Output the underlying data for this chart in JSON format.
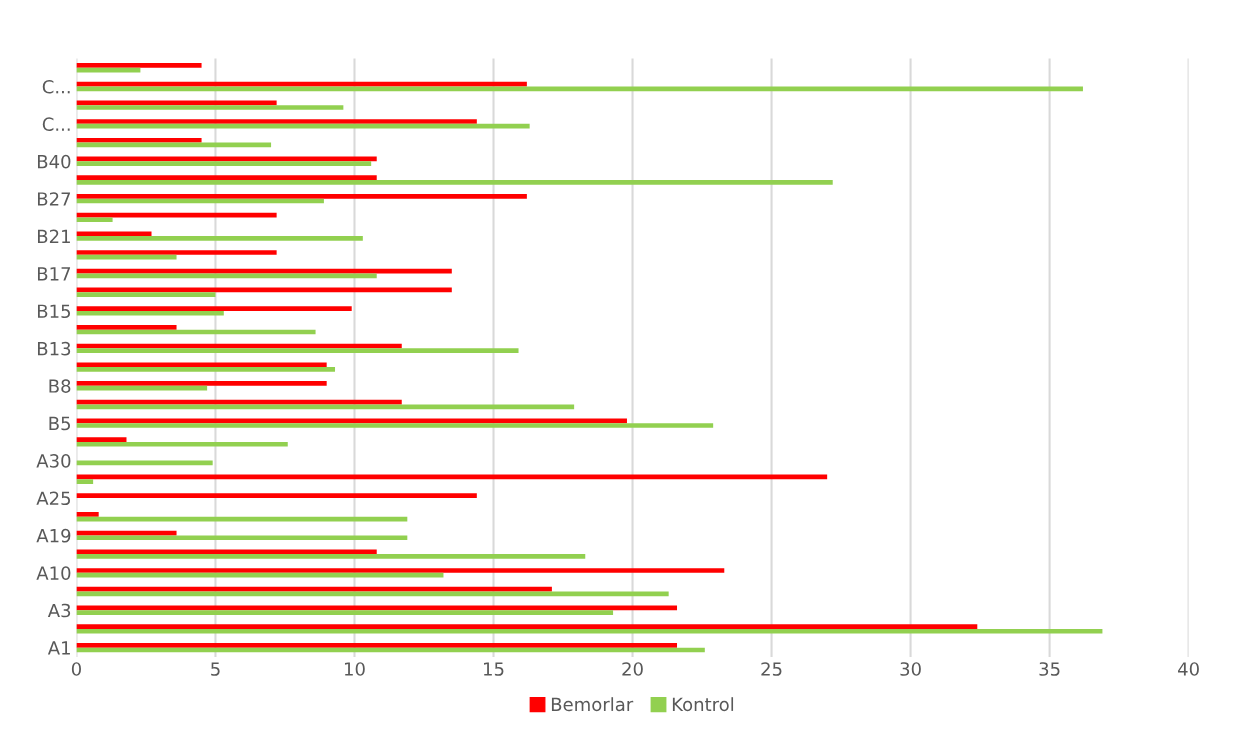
{
  "chart_data": {
    "type": "bar",
    "orientation": "horizontal",
    "categories": [
      null,
      "C...",
      null,
      "C...",
      null,
      "B40",
      null,
      "B27",
      null,
      "B21",
      null,
      "B17",
      null,
      "B15",
      null,
      "B13",
      null,
      "B8",
      null,
      "B5",
      null,
      "A30",
      null,
      "A25",
      null,
      "A19",
      null,
      "A10",
      null,
      "A3",
      null,
      "A1"
    ],
    "series": [
      {
        "name": "Bemorlar",
        "color": "#ff0000",
        "values": [
          4.5,
          16.2,
          7.2,
          14.4,
          4.5,
          10.8,
          10.8,
          16.2,
          7.2,
          2.7,
          7.2,
          13.5,
          13.5,
          9.9,
          3.6,
          11.7,
          9.0,
          9.0,
          11.7,
          19.8,
          1.8,
          0,
          27.0,
          14.4,
          0.8,
          3.6,
          10.8,
          23.3,
          17.1,
          21.6,
          32.4,
          21.6
        ]
      },
      {
        "name": "Kontrol",
        "color": "#92d050",
        "values": [
          2.3,
          36.2,
          9.6,
          16.3,
          7.0,
          10.6,
          27.2,
          8.9,
          1.3,
          10.3,
          3.6,
          10.8,
          5.0,
          5.3,
          8.6,
          15.9,
          9.3,
          4.7,
          17.9,
          22.9,
          7.6,
          4.9,
          0.6,
          0,
          11.9,
          11.9,
          18.3,
          13.2,
          21.3,
          19.3,
          36.9,
          22.6
        ]
      }
    ],
    "xlim": [
      0,
      40
    ],
    "xticks": [
      0,
      5,
      10,
      15,
      20,
      25,
      30,
      35,
      40
    ],
    "grid": "x",
    "legend": "bottom"
  }
}
